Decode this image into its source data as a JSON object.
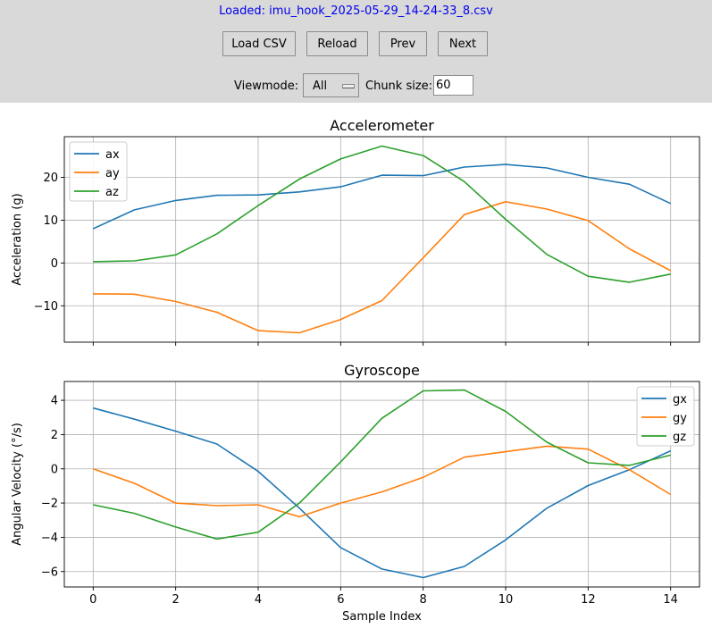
{
  "status_text": "Loaded: imu_hook_2025-05-29_14-24-33_8.csv",
  "buttons": {
    "load": "Load CSV",
    "reload": "Reload",
    "prev": "Prev",
    "next": "Next"
  },
  "viewmode": {
    "label": "Viewmode:",
    "value": "All"
  },
  "chunk": {
    "label": "Chunk size:",
    "value": "60"
  },
  "colors": {
    "x": "#1f77b4",
    "y": "#ff7f0e",
    "z": "#2ca02c"
  },
  "chart_data": [
    {
      "type": "line",
      "title": "Accelerometer",
      "xlabel": "",
      "ylabel": "Acceleration (g)",
      "x": [
        0,
        1,
        2,
        3,
        4,
        5,
        6,
        7,
        8,
        9,
        10,
        11,
        12,
        13,
        14
      ],
      "xlim": [
        -0.7,
        14.7
      ],
      "ylim": [
        -18.5,
        29.5
      ],
      "xticks": [
        0,
        2,
        4,
        6,
        8,
        10,
        12,
        14
      ],
      "yticks": [
        -10,
        0,
        10,
        20
      ],
      "grid": true,
      "legend": "top-left",
      "series": [
        {
          "name": "ax",
          "values": [
            8.0,
            12.4,
            14.6,
            15.8,
            15.9,
            16.6,
            17.8,
            20.5,
            20.4,
            22.4,
            23.0,
            22.2,
            20.0,
            18.4,
            13.9
          ]
        },
        {
          "name": "ay",
          "values": [
            -7.2,
            -7.3,
            -9.0,
            -11.5,
            -15.8,
            -16.3,
            -13.2,
            -8.8,
            1.2,
            11.3,
            14.3,
            12.6,
            9.9,
            3.3,
            -1.8
          ]
        },
        {
          "name": "az",
          "values": [
            0.3,
            0.5,
            1.9,
            6.8,
            13.4,
            19.6,
            24.3,
            27.3,
            25.1,
            19.0,
            10.2,
            2.0,
            -3.1,
            -4.5,
            -2.6
          ]
        }
      ]
    },
    {
      "type": "line",
      "title": "Gyroscope",
      "xlabel": "Sample Index",
      "ylabel": "Angular Velocity (°/s)",
      "x": [
        0,
        1,
        2,
        3,
        4,
        5,
        6,
        7,
        8,
        9,
        10,
        11,
        12,
        13,
        14
      ],
      "xlim": [
        -0.7,
        14.7
      ],
      "ylim": [
        -6.9,
        5.1
      ],
      "xticks": [
        0,
        2,
        4,
        6,
        8,
        10,
        12,
        14
      ],
      "yticks": [
        -6,
        -4,
        -2,
        0,
        2,
        4
      ],
      "grid": true,
      "legend": "top-right",
      "series": [
        {
          "name": "gx",
          "values": [
            3.55,
            2.9,
            2.2,
            1.45,
            -0.15,
            -2.3,
            -4.6,
            -5.85,
            -6.35,
            -5.7,
            -4.15,
            -2.3,
            -0.98,
            -0.05,
            1.05
          ]
        },
        {
          "name": "gy",
          "values": [
            0.0,
            -0.85,
            -2.0,
            -2.15,
            -2.1,
            -2.8,
            -2.0,
            -1.35,
            -0.5,
            0.68,
            1.0,
            1.32,
            1.15,
            -0.05,
            -1.5
          ]
        },
        {
          "name": "gz",
          "values": [
            -2.1,
            -2.6,
            -3.4,
            -4.1,
            -3.7,
            -2.0,
            0.4,
            2.95,
            4.55,
            4.6,
            3.35,
            1.55,
            0.35,
            0.2,
            0.8
          ]
        }
      ]
    }
  ]
}
